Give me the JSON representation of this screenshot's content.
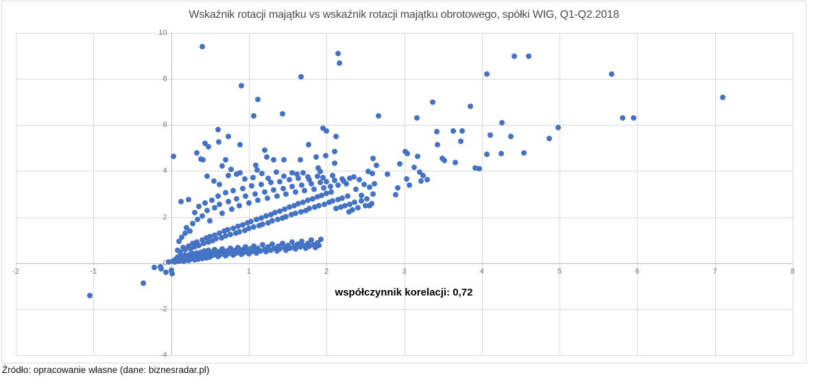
{
  "title": "Wskaźnik rotacji majątku vs wskaźnik rotacji majątku obrotowego, spółki WIG, Q1-Q2.2018",
  "annotation": "współczynnik korelacji: 0,72",
  "source": "Źródło: opracowanie własne (dane: biznesradar.pl)",
  "colors": {
    "marker": "#4472C4",
    "gridline": "#d9d9d9",
    "axis_line": "#bdbdbd",
    "tick_label": "#757575",
    "title_text": "#4a4a4a",
    "annotation_text": "#000000"
  },
  "chart_data": {
    "type": "scatter",
    "title": "Wskaźnik rotacji majątku vs wskaźnik rotacji majątku obrotowego, spółki WIG, Q1-Q2.2018",
    "xlabel": "",
    "ylabel": "",
    "xlim": [
      -2,
      8
    ],
    "ylim": [
      -4,
      10
    ],
    "x_ticks": [
      -2,
      -1,
      0,
      1,
      2,
      3,
      4,
      5,
      6,
      7,
      8
    ],
    "y_ticks": [
      10,
      8,
      6,
      4,
      2,
      0,
      -2,
      -4
    ],
    "grid": true,
    "legend": "none",
    "annotation_text": "współczynnik korelacji: 0,72",
    "correlation": 0.72,
    "marker_color": "#4472C4",
    "points": [
      [
        -1.05,
        -1.4
      ],
      [
        -0.36,
        -0.88
      ],
      [
        -0.22,
        -0.18
      ],
      [
        -0.14,
        -0.15
      ],
      [
        -0.13,
        -0.26
      ],
      [
        -0.07,
        -0.41
      ],
      [
        -0.03,
        0.06
      ],
      [
        0.0,
        -0.3
      ],
      [
        0.01,
        -0.47
      ],
      [
        0.4,
        9.4
      ],
      [
        2.15,
        9.1
      ],
      [
        2.17,
        8.7
      ],
      [
        4.42,
        9.0
      ],
      [
        4.6,
        9.0
      ],
      [
        1.67,
        8.1
      ],
      [
        4.06,
        8.2
      ],
      [
        5.67,
        8.2
      ],
      [
        0.9,
        7.7
      ],
      [
        7.1,
        7.2
      ],
      [
        1.12,
        7.1
      ],
      [
        3.37,
        7.0
      ],
      [
        3.85,
        6.8
      ],
      [
        1.06,
        6.4
      ],
      [
        1.43,
        6.5
      ],
      [
        2.67,
        6.4
      ],
      [
        3.16,
        6.3
      ],
      [
        5.81,
        6.3
      ],
      [
        5.95,
        6.3
      ],
      [
        4.26,
        6.1
      ],
      [
        4.98,
        5.88
      ],
      [
        4.87,
        5.42
      ],
      [
        0.6,
        5.8
      ],
      [
        1.95,
        5.85
      ],
      [
        2.0,
        5.75
      ],
      [
        3.42,
        5.7
      ],
      [
        3.63,
        5.75
      ],
      [
        3.75,
        5.75
      ],
      [
        0.74,
        5.5
      ],
      [
        2.12,
        5.5
      ],
      [
        4.11,
        5.55
      ],
      [
        4.37,
        5.5
      ],
      [
        0.44,
        5.2
      ],
      [
        0.61,
        5.25
      ],
      [
        0.48,
        5.05
      ],
      [
        0.89,
        5.15
      ],
      [
        1.77,
        5.15
      ],
      [
        3.73,
        5.3
      ],
      [
        3.43,
        5.15
      ],
      [
        0.33,
        4.8
      ],
      [
        1.2,
        4.9
      ],
      [
        2.1,
        4.85
      ],
      [
        3.17,
        4.63
      ],
      [
        4.06,
        4.73
      ],
      [
        4.25,
        4.77
      ],
      [
        4.54,
        4.8
      ],
      [
        3.49,
        4.56
      ],
      [
        3.52,
        4.47
      ],
      [
        3.66,
        4.38
      ],
      [
        3.91,
        4.14
      ],
      [
        3.97,
        4.11
      ],
      [
        3.13,
        4.17
      ],
      [
        3.2,
        3.96
      ],
      [
        0.03,
        4.64
      ],
      [
        0.38,
        4.53
      ],
      [
        0.41,
        4.48
      ],
      [
        0.7,
        4.49
      ],
      [
        1.23,
        4.62
      ],
      [
        1.32,
        4.5
      ],
      [
        1.45,
        4.48
      ],
      [
        1.66,
        4.49
      ],
      [
        1.87,
        4.62
      ],
      [
        1.99,
        4.67
      ],
      [
        2.1,
        4.33
      ],
      [
        2.6,
        4.55
      ],
      [
        2.64,
        4.25
      ],
      [
        3.01,
        4.85
      ],
      [
        3.04,
        4.75
      ],
      [
        2.94,
        4.3
      ],
      [
        0.66,
        4.22
      ],
      [
        0.77,
        4.07
      ],
      [
        0.89,
        3.91
      ],
      [
        1.09,
        4.26
      ],
      [
        1.11,
        4.04
      ],
      [
        1.35,
        3.94
      ],
      [
        1.56,
        3.91
      ],
      [
        1.7,
        3.93
      ],
      [
        1.89,
        4.12
      ],
      [
        1.92,
        3.99
      ],
      [
        2.54,
        3.99
      ],
      [
        2.59,
        3.9
      ],
      [
        2.78,
        3.87
      ],
      [
        3.03,
        3.66
      ],
      [
        3.22,
        3.57
      ],
      [
        3.3,
        3.63
      ],
      [
        3.07,
        3.39
      ],
      [
        2.92,
        3.27
      ],
      [
        2.89,
        2.98
      ],
      [
        3.24,
        3.79
      ],
      [
        0.02,
        0.08
      ],
      [
        0.04,
        0.12
      ],
      [
        0.05,
        0.05
      ],
      [
        0.06,
        0.18
      ],
      [
        0.07,
        0.1
      ],
      [
        0.08,
        0.25
      ],
      [
        0.09,
        0.14
      ],
      [
        0.1,
        0.07
      ],
      [
        0.11,
        0.2
      ],
      [
        0.12,
        0.31
      ],
      [
        0.13,
        0.1
      ],
      [
        0.14,
        0.16
      ],
      [
        0.15,
        0.26
      ],
      [
        0.16,
        0.09
      ],
      [
        0.17,
        0.21
      ],
      [
        0.18,
        0.35
      ],
      [
        0.19,
        0.13
      ],
      [
        0.2,
        0.18
      ],
      [
        0.21,
        0.28
      ],
      [
        0.22,
        0.11
      ],
      [
        0.23,
        0.23
      ],
      [
        0.24,
        0.38
      ],
      [
        0.25,
        0.16
      ],
      [
        0.26,
        0.3
      ],
      [
        0.27,
        0.2
      ],
      [
        0.28,
        0.42
      ],
      [
        0.29,
        0.25
      ],
      [
        0.3,
        0.14
      ],
      [
        0.31,
        0.33
      ],
      [
        0.32,
        0.22
      ],
      [
        0.33,
        0.45
      ],
      [
        0.34,
        0.28
      ],
      [
        0.35,
        0.18
      ],
      [
        0.36,
        0.38
      ],
      [
        0.37,
        0.26
      ],
      [
        0.38,
        0.48
      ],
      [
        0.39,
        0.31
      ],
      [
        0.4,
        0.21
      ],
      [
        0.41,
        0.41
      ],
      [
        0.42,
        0.29
      ],
      [
        0.43,
        0.52
      ],
      [
        0.44,
        0.35
      ],
      [
        0.45,
        0.24
      ],
      [
        0.46,
        0.44
      ],
      [
        0.47,
        0.32
      ],
      [
        0.48,
        0.55
      ],
      [
        0.49,
        0.38
      ],
      [
        0.5,
        0.27
      ],
      [
        0.52,
        0.47
      ],
      [
        0.54,
        0.34
      ],
      [
        0.56,
        0.58
      ],
      [
        0.58,
        0.41
      ],
      [
        0.6,
        0.3
      ],
      [
        0.62,
        0.5
      ],
      [
        0.64,
        0.37
      ],
      [
        0.66,
        0.62
      ],
      [
        0.68,
        0.44
      ],
      [
        0.7,
        0.33
      ],
      [
        0.72,
        0.53
      ],
      [
        0.74,
        0.4
      ],
      [
        0.76,
        0.65
      ],
      [
        0.78,
        0.47
      ],
      [
        0.8,
        0.36
      ],
      [
        0.82,
        0.57
      ],
      [
        0.84,
        0.43
      ],
      [
        0.86,
        0.68
      ],
      [
        0.88,
        0.5
      ],
      [
        0.9,
        0.39
      ],
      [
        0.92,
        0.6
      ],
      [
        0.94,
        0.46
      ],
      [
        0.96,
        0.72
      ],
      [
        0.98,
        0.53
      ],
      [
        1.0,
        0.42
      ],
      [
        1.02,
        0.63
      ],
      [
        1.04,
        0.5
      ],
      [
        1.06,
        0.75
      ],
      [
        1.08,
        0.56
      ],
      [
        1.1,
        0.45
      ],
      [
        1.12,
        0.66
      ],
      [
        1.15,
        0.53
      ],
      [
        1.18,
        0.79
      ],
      [
        1.2,
        0.6
      ],
      [
        1.22,
        0.49
      ],
      [
        1.25,
        0.7
      ],
      [
        1.28,
        0.57
      ],
      [
        1.3,
        0.83
      ],
      [
        1.33,
        0.64
      ],
      [
        1.36,
        0.53
      ],
      [
        1.38,
        0.74
      ],
      [
        1.4,
        0.61
      ],
      [
        1.43,
        0.87
      ],
      [
        1.46,
        0.68
      ],
      [
        1.48,
        0.57
      ],
      [
        1.5,
        0.78
      ],
      [
        1.53,
        0.65
      ],
      [
        1.56,
        0.91
      ],
      [
        1.58,
        0.72
      ],
      [
        1.6,
        0.61
      ],
      [
        1.63,
        0.82
      ],
      [
        1.66,
        0.7
      ],
      [
        1.68,
        0.95
      ],
      [
        1.7,
        0.76
      ],
      [
        1.73,
        0.65
      ],
      [
        1.76,
        0.86
      ],
      [
        1.78,
        0.74
      ],
      [
        1.8,
        0.99
      ],
      [
        1.83,
        0.8
      ],
      [
        1.86,
        0.69
      ],
      [
        1.88,
        0.9
      ],
      [
        1.9,
        0.78
      ],
      [
        1.93,
        1.03
      ],
      [
        0.08,
        0.55
      ],
      [
        0.12,
        0.48
      ],
      [
        0.15,
        0.68
      ],
      [
        0.18,
        0.58
      ],
      [
        0.22,
        0.75
      ],
      [
        0.25,
        0.63
      ],
      [
        0.28,
        0.85
      ],
      [
        0.3,
        0.7
      ],
      [
        0.33,
        0.92
      ],
      [
        0.36,
        0.78
      ],
      [
        0.4,
        1.0
      ],
      [
        0.42,
        0.85
      ],
      [
        0.45,
        1.08
      ],
      [
        0.48,
        0.92
      ],
      [
        0.5,
        1.15
      ],
      [
        0.53,
        0.98
      ],
      [
        0.56,
        1.22
      ],
      [
        0.58,
        1.05
      ],
      [
        0.62,
        1.3
      ],
      [
        0.65,
        1.1
      ],
      [
        0.68,
        1.38
      ],
      [
        0.7,
        1.17
      ],
      [
        0.73,
        1.45
      ],
      [
        0.76,
        1.23
      ],
      [
        0.8,
        1.52
      ],
      [
        0.83,
        1.3
      ],
      [
        0.86,
        1.6
      ],
      [
        0.88,
        1.36
      ],
      [
        0.92,
        1.67
      ],
      [
        0.95,
        1.43
      ],
      [
        0.98,
        1.75
      ],
      [
        1.0,
        1.5
      ],
      [
        1.03,
        1.82
      ],
      [
        1.06,
        1.56
      ],
      [
        1.1,
        1.9
      ],
      [
        1.13,
        1.63
      ],
      [
        1.16,
        1.97
      ],
      [
        1.18,
        1.7
      ],
      [
        1.22,
        2.05
      ],
      [
        1.25,
        1.76
      ],
      [
        1.28,
        2.12
      ],
      [
        1.3,
        1.83
      ],
      [
        1.34,
        2.2
      ],
      [
        1.37,
        1.9
      ],
      [
        1.4,
        2.27
      ],
      [
        1.43,
        1.96
      ],
      [
        1.46,
        2.35
      ],
      [
        1.48,
        2.03
      ],
      [
        1.52,
        2.42
      ],
      [
        1.55,
        2.1
      ],
      [
        1.58,
        2.5
      ],
      [
        1.6,
        2.16
      ],
      [
        1.64,
        2.57
      ],
      [
        1.67,
        2.23
      ],
      [
        1.7,
        2.65
      ],
      [
        1.73,
        2.3
      ],
      [
        1.76,
        2.72
      ],
      [
        1.78,
        2.36
      ],
      [
        1.82,
        2.8
      ],
      [
        1.85,
        2.43
      ],
      [
        1.88,
        2.87
      ],
      [
        1.9,
        2.5
      ],
      [
        1.94,
        2.95
      ],
      [
        1.97,
        2.56
      ],
      [
        2.0,
        3.02
      ],
      [
        2.03,
        2.63
      ],
      [
        2.06,
        3.1
      ],
      [
        2.08,
        2.7
      ],
      [
        2.12,
        2.37
      ],
      [
        2.15,
        2.76
      ],
      [
        2.18,
        2.43
      ],
      [
        2.2,
        2.83
      ],
      [
        2.24,
        2.5
      ],
      [
        2.27,
        2.9
      ],
      [
        2.3,
        2.56
      ],
      [
        2.33,
        2.31
      ],
      [
        2.29,
        2.22
      ],
      [
        2.36,
        2.63
      ],
      [
        2.4,
        2.4
      ],
      [
        2.45,
        2.7
      ],
      [
        2.5,
        2.5
      ],
      [
        0.1,
        0.95
      ],
      [
        0.14,
        1.12
      ],
      [
        0.18,
        1.3
      ],
      [
        0.13,
        2.68
      ],
      [
        0.22,
        2.75
      ],
      [
        0.2,
        1.55
      ],
      [
        0.24,
        1.4
      ],
      [
        0.28,
        1.72
      ],
      [
        0.3,
        2.2
      ],
      [
        0.34,
        1.9
      ],
      [
        0.36,
        2.45
      ],
      [
        0.4,
        2.05
      ],
      [
        0.44,
        2.6
      ],
      [
        0.46,
        2.28
      ],
      [
        0.5,
        1.85
      ],
      [
        0.52,
        2.72
      ],
      [
        0.56,
        2.4
      ],
      [
        0.6,
        2.9
      ],
      [
        0.62,
        2.55
      ],
      [
        0.66,
        2.18
      ],
      [
        0.7,
        3.05
      ],
      [
        0.74,
        2.68
      ],
      [
        0.78,
        2.35
      ],
      [
        0.8,
        3.15
      ],
      [
        0.84,
        2.8
      ],
      [
        0.88,
        2.48
      ],
      [
        0.92,
        3.25
      ],
      [
        0.96,
        2.92
      ],
      [
        1.0,
        2.6
      ],
      [
        1.04,
        3.35
      ],
      [
        1.08,
        3.0
      ],
      [
        1.12,
        2.72
      ],
      [
        1.16,
        3.42
      ],
      [
        1.2,
        3.1
      ],
      [
        1.24,
        2.82
      ],
      [
        1.28,
        3.5
      ],
      [
        1.32,
        3.18
      ],
      [
        1.36,
        2.9
      ],
      [
        1.4,
        3.55
      ],
      [
        1.44,
        3.25
      ],
      [
        1.48,
        3.0
      ],
      [
        1.52,
        3.62
      ],
      [
        1.56,
        3.32
      ],
      [
        1.6,
        3.08
      ],
      [
        1.64,
        3.68
      ],
      [
        1.68,
        3.4
      ],
      [
        1.72,
        3.15
      ],
      [
        1.76,
        3.73
      ],
      [
        1.8,
        3.45
      ],
      [
        1.84,
        3.22
      ],
      [
        1.88,
        3.76
      ],
      [
        1.92,
        3.5
      ],
      [
        1.96,
        3.28
      ],
      [
        2.0,
        3.55
      ],
      [
        2.05,
        3.32
      ],
      [
        2.1,
        3.6
      ],
      [
        2.15,
        3.38
      ],
      [
        2.2,
        3.65
      ],
      [
        2.25,
        3.45
      ],
      [
        2.3,
        3.7
      ],
      [
        0.46,
        3.76
      ],
      [
        0.74,
        3.8
      ],
      [
        0.84,
        3.87
      ],
      [
        1.17,
        3.9
      ],
      [
        0.55,
        3.58
      ],
      [
        0.62,
        3.42
      ],
      [
        0.95,
        3.65
      ],
      [
        1.05,
        3.72
      ],
      [
        1.25,
        3.68
      ],
      [
        1.45,
        3.78
      ],
      [
        1.62,
        3.85
      ],
      [
        1.78,
        3.62
      ],
      [
        1.95,
        3.72
      ],
      [
        2.08,
        3.8
      ],
      [
        2.22,
        3.58
      ],
      [
        2.35,
        3.75
      ],
      [
        2.42,
        3.62
      ],
      [
        2.48,
        3.42
      ],
      [
        2.55,
        3.3
      ],
      [
        2.6,
        3.0
      ],
      [
        2.52,
        2.8
      ],
      [
        2.58,
        2.58
      ],
      [
        2.45,
        2.95
      ],
      [
        2.38,
        3.2
      ],
      [
        2.62,
        3.45
      ],
      [
        2.55,
        2.5
      ]
    ]
  }
}
